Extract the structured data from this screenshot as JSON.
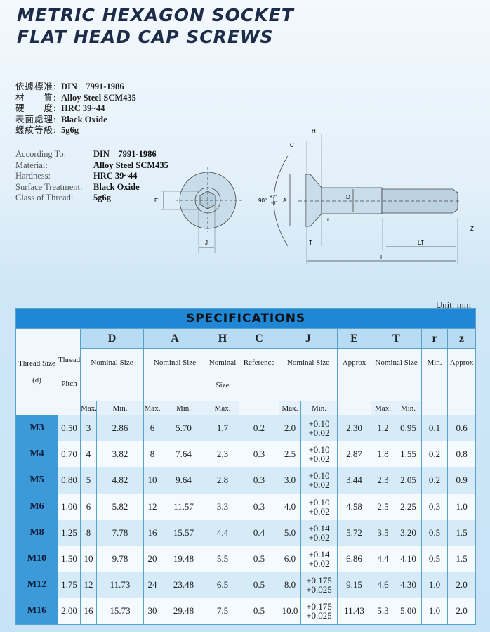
{
  "title": {
    "line1": "METRIC HEXAGON SOCKET",
    "line2": "FLAT HEAD CAP SCREWS"
  },
  "spec_cn": [
    {
      "k": "依據標准:",
      "v": "DIN　7991-1986"
    },
    {
      "k": "材　　質:",
      "v": "Alloy Steel SCM435"
    },
    {
      "k": "硬　　度:",
      "v": "HRC 39~44"
    },
    {
      "k": "表面處理:",
      "v": "Black Oxide"
    },
    {
      "k": "螺紋等級:",
      "v": "5g6g"
    }
  ],
  "spec_en": [
    {
      "k": "According To:",
      "v": "DIN　7991-1986"
    },
    {
      "k": "Material:",
      "v": "Alloy Steel SCM435"
    },
    {
      "k": "Hardness:",
      "v": "HRC 39~44"
    },
    {
      "k": "Surface Treatment:",
      "v": "Black Oxide"
    },
    {
      "k": "Class of Thread:",
      "v": "5g6g"
    }
  ],
  "drawing": {
    "E": "E",
    "J": "J",
    "angle": "90°",
    "tol_plus": "+2°",
    "tol_minus": "-0°",
    "A": "A",
    "C": "C",
    "H": "H",
    "D": "D",
    "T": "T",
    "r": "r",
    "Z": "Z",
    "LT": "LT",
    "L": "L"
  },
  "unit": "Unit: mm",
  "table": {
    "title": "SPECIFICATIONS",
    "letters": [
      "D",
      "A",
      "H",
      "C",
      "J",
      "E",
      "T",
      "r",
      "z"
    ],
    "thread_size": "Thread Size (d)",
    "thread_pitch": "Thread Pitch",
    "nominal_size": "Nominal Size",
    "reference": "Reference",
    "approx": "Approx",
    "min": "Min.",
    "max": "Max.",
    "rows": [
      [
        "M3",
        "0.50",
        "3",
        "2.86",
        "6",
        "5.70",
        "1.7",
        "0.2",
        "2.0",
        "+0.10",
        "+0.02",
        "2.30",
        "1.2",
        "0.95",
        "0.1",
        "0.6"
      ],
      [
        "M4",
        "0.70",
        "4",
        "3.82",
        "8",
        "7.64",
        "2.3",
        "0.3",
        "2.5",
        "+0.10",
        "+0.02",
        "2.87",
        "1.8",
        "1.55",
        "0.2",
        "0.8"
      ],
      [
        "M5",
        "0.80",
        "5",
        "4.82",
        "10",
        "9.64",
        "2.8",
        "0.3",
        "3.0",
        "+0.10",
        "+0.02",
        "3.44",
        "2.3",
        "2.05",
        "0.2",
        "0.9"
      ],
      [
        "M6",
        "1.00",
        "6",
        "5.82",
        "12",
        "11.57",
        "3.3",
        "0.3",
        "4.0",
        "+0.10",
        "+0.02",
        "4.58",
        "2.5",
        "2.25",
        "0.3",
        "1.0"
      ],
      [
        "M8",
        "1.25",
        "8",
        "7.78",
        "16",
        "15.57",
        "4.4",
        "0.4",
        "5.0",
        "+0.14",
        "+0.02",
        "5.72",
        "3.5",
        "3.20",
        "0.5",
        "1.5"
      ],
      [
        "M10",
        "1.50",
        "10",
        "9.78",
        "20",
        "19.48",
        "5.5",
        "0.5",
        "6.0",
        "+0.14",
        "+0.02",
        "6.86",
        "4.4",
        "4.10",
        "0.5",
        "1.5"
      ],
      [
        "M12",
        "1.75",
        "12",
        "11.73",
        "24",
        "23.48",
        "6.5",
        "0.5",
        "8.0",
        "+0.175",
        "+0.025",
        "9.15",
        "4.6",
        "4.30",
        "1.0",
        "2.0"
      ],
      [
        "M16",
        "2.00",
        "16",
        "15.73",
        "30",
        "29.48",
        "7.5",
        "0.5",
        "10.0",
        "+0.175",
        "+0.025",
        "11.43",
        "5.3",
        "5.00",
        "1.0",
        "2.0"
      ]
    ]
  }
}
